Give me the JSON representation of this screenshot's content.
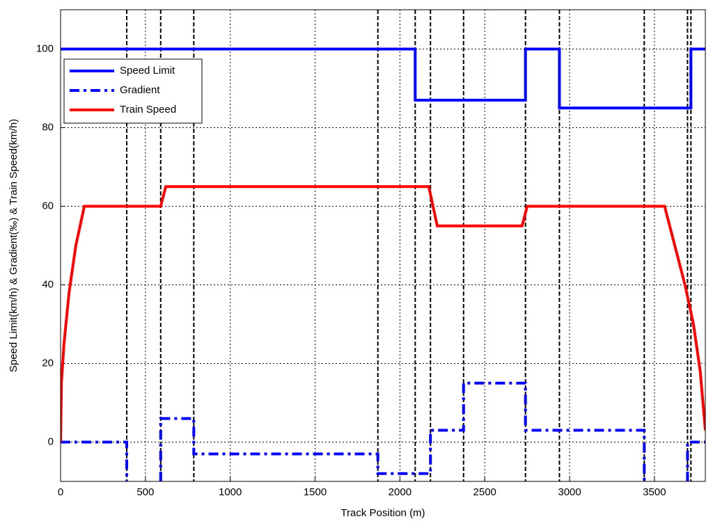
{
  "chart_data": {
    "type": "line",
    "xlabel": "Track Position (m)",
    "ylabel": "Speed Limit(km/h) & Gradient(‰) & Train Speed(km/h)",
    "xlim": [
      0,
      3800
    ],
    "xticks": [
      0,
      500,
      1000,
      1500,
      2000,
      2500,
      3000,
      3500
    ],
    "ylim": [
      -10,
      110
    ],
    "yticks": [
      0,
      20,
      40,
      60,
      80,
      100
    ],
    "grid": true,
    "legend": "upper left",
    "vlines": [
      390,
      590,
      785,
      1870,
      2090,
      2180,
      2375,
      2740,
      2940,
      3440,
      3695,
      3715
    ],
    "series": [
      {
        "name": "Speed Limit",
        "color": "#0000ff",
        "style": "solid",
        "x": [
          0,
          2090,
          2090,
          2740,
          2740,
          2940,
          2940,
          3715,
          3715,
          3800
        ],
        "values": [
          100,
          100,
          87,
          87,
          100,
          100,
          85,
          85,
          100,
          100
        ]
      },
      {
        "name": "Gradient",
        "color": "#0000ff",
        "style": "dashdot",
        "x": [
          0,
          390,
          390,
          490,
          590,
          590,
          785,
          785,
          1870,
          1870,
          2180,
          2180,
          2375,
          2375,
          2740,
          2740,
          3440,
          3440,
          3570,
          3695,
          3695,
          3800
        ],
        "values": [
          0,
          0,
          -10,
          null,
          -10,
          6,
          6,
          -3,
          -3,
          -8,
          -8,
          3,
          3,
          15,
          15,
          3,
          3,
          -10,
          null,
          -10,
          0,
          0
        ]
      },
      {
        "name": "Train Speed",
        "color": "#ff0000",
        "style": "solid",
        "x": [
          0,
          5,
          20,
          50,
          90,
          140,
          590,
          620,
          2170,
          2220,
          2720,
          2750,
          3560,
          3620,
          3680,
          3730,
          3770,
          3800
        ],
        "values": [
          0,
          15,
          25,
          38,
          50,
          60,
          60,
          65,
          65,
          55,
          55,
          60,
          60,
          50,
          40,
          30,
          18,
          3
        ]
      }
    ]
  }
}
